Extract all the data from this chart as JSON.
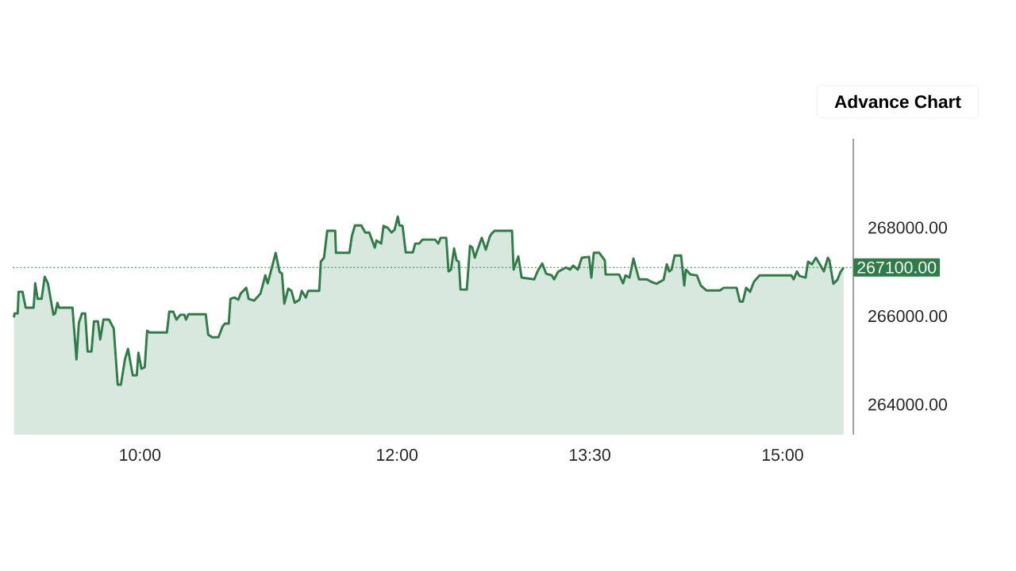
{
  "chart_data": {
    "type": "area",
    "color": "#2e7d46",
    "line_style": "solid",
    "marker": "none",
    "grid": false,
    "annotations": [
      "Advance Chart"
    ],
    "xlim": [
      9.01,
      15.55
    ],
    "ylim": [
      263320,
      270010
    ],
    "xticks": [
      {
        "value": 10,
        "label": "10:00"
      },
      {
        "value": 12,
        "label": "12:00"
      },
      {
        "value": 13.5,
        "label": "13:30"
      },
      {
        "value": 15,
        "label": "15:00"
      }
    ],
    "yticks": [
      {
        "value": 264000,
        "label": "264000.00"
      },
      {
        "value": 266000,
        "label": "266000.00"
      },
      {
        "value": 268000,
        "label": "268000.00"
      }
    ],
    "ref_lines": [
      {
        "axis": "y",
        "value": 267100,
        "label": "267100.00",
        "color": "#2e7d46",
        "line_style": "dotted"
      }
    ],
    "x": [
      9.019,
      9.025,
      9.049,
      9.056,
      9.086,
      9.111,
      9.173,
      9.185,
      9.204,
      9.235,
      9.259,
      9.284,
      9.327,
      9.34,
      9.358,
      9.37,
      9.475,
      9.506,
      9.525,
      9.549,
      9.574,
      9.593,
      9.623,
      9.642,
      9.673,
      9.691,
      9.716,
      9.759,
      9.796,
      9.827,
      9.852,
      9.883,
      9.907,
      9.944,
      9.975,
      9.988,
      10.012,
      10.037,
      10.056,
      10.074,
      10.21,
      10.228,
      10.259,
      10.284,
      10.315,
      10.346,
      10.358,
      10.377,
      10.512,
      10.531,
      10.562,
      10.611,
      10.642,
      10.66,
      10.691,
      10.704,
      10.735,
      10.765,
      10.784,
      10.827,
      10.846,
      10.889,
      10.938,
      10.975,
      10.994,
      11.056,
      11.086,
      11.105,
      11.123,
      11.154,
      11.179,
      11.204,
      11.241,
      11.259,
      11.29,
      11.309,
      11.395,
      11.407,
      11.432,
      11.457,
      11.519,
      11.525,
      11.63,
      11.648,
      11.673,
      11.722,
      11.753,
      11.784,
      11.827,
      11.84,
      11.877,
      11.895,
      11.926,
      11.957,
      11.981,
      12.006,
      12.019,
      12.043,
      12.068,
      12.123,
      12.142,
      12.173,
      12.198,
      12.296,
      12.321,
      12.34,
      12.383,
      12.401,
      12.42,
      12.444,
      12.463,
      12.481,
      12.494,
      12.543,
      12.568,
      12.586,
      12.605,
      12.63,
      12.66,
      12.691,
      12.722,
      12.735,
      12.759,
      12.895,
      12.907,
      12.944,
      12.969,
      13.068,
      13.093,
      13.13,
      13.16,
      13.204,
      13.222,
      13.253,
      13.315,
      13.346,
      13.37,
      13.407,
      13.438,
      13.494,
      13.512,
      13.531,
      13.574,
      13.617,
      13.623,
      13.728,
      13.759,
      13.778,
      13.809,
      13.84,
      13.883,
      13.944,
      13.975,
      14.019,
      14.049,
      14.074,
      14.099,
      14.117,
      14.136,
      14.16,
      14.21,
      14.235,
      14.247,
      14.284,
      14.333,
      14.364,
      14.407,
      14.512,
      14.543,
      14.642,
      14.667,
      14.691,
      14.716,
      14.747,
      14.778,
      14.821,
      15.068,
      15.086,
      15.111,
      15.13,
      15.179,
      15.198,
      15.228,
      15.259,
      15.29,
      15.321,
      15.352,
      15.364,
      15.395,
      15.426,
      15.451,
      15.475
    ],
    "values": [
      265970,
      266060,
      266060,
      266550,
      266550,
      266190,
      266190,
      266740,
      266390,
      266390,
      266890,
      266740,
      266030,
      266060,
      266300,
      266190,
      266190,
      265020,
      265850,
      266060,
      266060,
      265200,
      265200,
      265880,
      265880,
      265470,
      265920,
      265920,
      265720,
      264450,
      264450,
      265020,
      265260,
      264660,
      264660,
      265170,
      264810,
      264840,
      265670,
      265630,
      265630,
      266100,
      266100,
      265920,
      266030,
      266030,
      265920,
      266040,
      266040,
      265580,
      265520,
      265520,
      265760,
      265830,
      265830,
      266390,
      266420,
      266370,
      266510,
      266640,
      266390,
      266350,
      266510,
      266920,
      266740,
      267430,
      267000,
      266960,
      266280,
      266620,
      266570,
      266300,
      266370,
      266570,
      266420,
      266570,
      266570,
      267230,
      267320,
      267930,
      267930,
      267430,
      267430,
      267800,
      268050,
      268050,
      267890,
      267890,
      267550,
      267710,
      267640,
      268040,
      268000,
      267890,
      267950,
      268250,
      268050,
      268040,
      267440,
      267440,
      267640,
      267640,
      267730,
      267730,
      267640,
      267770,
      267770,
      267010,
      267050,
      267530,
      267260,
      267230,
      266600,
      266600,
      267590,
      267550,
      267320,
      267530,
      267770,
      267500,
      267800,
      267860,
      267930,
      267930,
      267050,
      267350,
      266870,
      266830,
      267010,
      267190,
      266960,
      266920,
      266830,
      267000,
      267100,
      267050,
      267140,
      267050,
      267320,
      267340,
      266870,
      267430,
      267430,
      267260,
      266940,
      266940,
      266740,
      266920,
      266870,
      267300,
      266830,
      266830,
      266780,
      266730,
      266780,
      266820,
      267170,
      267010,
      267050,
      267370,
      267370,
      266690,
      267050,
      266940,
      266920,
      266690,
      266580,
      266580,
      266640,
      266640,
      266330,
      266330,
      266640,
      266550,
      266780,
      266920,
      266920,
      266830,
      267010,
      266910,
      266870,
      267230,
      267170,
      267320,
      267170,
      267010,
      267320,
      267260,
      266730,
      266820,
      267000,
      267100
    ]
  }
}
